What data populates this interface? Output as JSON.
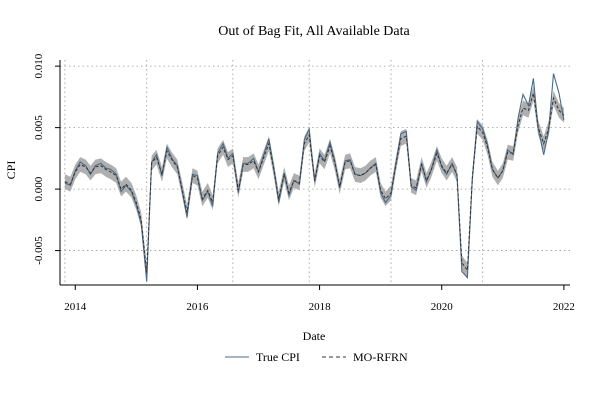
{
  "chart_data": {
    "type": "line",
    "title": "Out of Bag Fit, All Available Data",
    "xlabel": "Date",
    "ylabel": "CPI",
    "x_ticks": [
      "2014",
      "2016",
      "2018",
      "2020",
      "2022"
    ],
    "y_ticks": [
      "-0.005",
      "0.000",
      "0.005",
      "0.010"
    ],
    "x_tick_values": [
      2014,
      2016,
      2018,
      2020,
      2022
    ],
    "y_tick_values": [
      -0.005,
      0.0,
      0.005,
      0.01
    ],
    "xlim": [
      2013.75,
      2022.1
    ],
    "ylim": [
      -0.0078,
      0.0105
    ],
    "grid": "dotted",
    "vertical_grid_dates": [
      2013.83,
      2015.17,
      2016.58,
      2017.83,
      2019.17,
      2020.67
    ],
    "legend_position": "bottom",
    "x": [
      2013.83,
      2013.92,
      2014.0,
      2014.08,
      2014.17,
      2014.25,
      2014.33,
      2014.42,
      2014.5,
      2014.58,
      2014.67,
      2014.75,
      2014.83,
      2014.92,
      2015.0,
      2015.08,
      2015.17,
      2015.25,
      2015.33,
      2015.42,
      2015.5,
      2015.58,
      2015.67,
      2015.75,
      2015.83,
      2015.92,
      2016.0,
      2016.08,
      2016.17,
      2016.25,
      2016.33,
      2016.42,
      2016.5,
      2016.58,
      2016.67,
      2016.75,
      2016.83,
      2016.92,
      2017.0,
      2017.08,
      2017.17,
      2017.25,
      2017.33,
      2017.42,
      2017.5,
      2017.58,
      2017.67,
      2017.75,
      2017.83,
      2017.92,
      2018.0,
      2018.08,
      2018.17,
      2018.25,
      2018.33,
      2018.42,
      2018.5,
      2018.58,
      2018.67,
      2018.75,
      2018.83,
      2018.92,
      2019.0,
      2019.08,
      2019.17,
      2019.25,
      2019.33,
      2019.42,
      2019.5,
      2019.58,
      2019.67,
      2019.75,
      2019.83,
      2019.92,
      2020.0,
      2020.08,
      2020.17,
      2020.25,
      2020.33,
      2020.42,
      2020.5,
      2020.58,
      2020.67,
      2020.75,
      2020.83,
      2020.92,
      2021.0,
      2021.08,
      2021.17,
      2021.25,
      2021.33,
      2021.42,
      2021.5,
      2021.58,
      2021.67,
      2021.75,
      2021.83,
      2021.92,
      2022.0
    ],
    "series": [
      {
        "name": "True CPI",
        "style": "solid",
        "color": "#4a6a8a",
        "values": [
          0.0005,
          0.0003,
          0.0015,
          0.0022,
          0.0019,
          0.0012,
          0.0019,
          0.0021,
          0.0017,
          0.0016,
          0.0012,
          -0.0002,
          0.0003,
          -0.0002,
          -0.0013,
          -0.0028,
          -0.0075,
          0.0022,
          0.0028,
          0.0011,
          0.0034,
          0.0025,
          0.0019,
          -0.0002,
          -0.0023,
          0.0012,
          0.0011,
          -0.0009,
          -0.0002,
          -0.0014,
          0.0029,
          0.0037,
          0.0025,
          0.0029,
          -0.0003,
          0.0021,
          0.0021,
          0.0025,
          0.0014,
          0.0027,
          0.0041,
          0.0017,
          -0.0011,
          0.0013,
          -0.0005,
          0.0007,
          0.0004,
          0.004,
          0.0049,
          0.0006,
          0.0029,
          0.0023,
          0.0038,
          0.0022,
          0.0001,
          0.0023,
          0.0024,
          0.0012,
          0.0011,
          0.0013,
          0.0017,
          0.0021,
          -0.0003,
          -0.0011,
          -0.0005,
          0.0021,
          0.0045,
          0.0047,
          0.0002,
          -0.0001,
          0.0021,
          0.0006,
          0.0016,
          0.0032,
          0.0018,
          0.0012,
          0.0021,
          0.0011,
          -0.0067,
          -0.0072,
          0.0008,
          0.0055,
          0.0049,
          0.0036,
          0.0016,
          0.0009,
          0.0015,
          0.0032,
          0.0028,
          0.0058,
          0.0077,
          0.0068,
          0.009,
          0.0049,
          0.0028,
          0.0047,
          0.0094,
          0.0078,
          0.0056
        ]
      },
      {
        "name": "MO-RFRN",
        "style": "dashed",
        "color": "#333333",
        "values": [
          0.0006,
          0.0004,
          0.0014,
          0.002,
          0.0018,
          0.0013,
          0.0018,
          0.0019,
          0.0016,
          0.0014,
          0.0011,
          0.0,
          0.0004,
          -0.0001,
          -0.0011,
          -0.0025,
          -0.0068,
          0.0021,
          0.0026,
          0.0012,
          0.0031,
          0.0024,
          0.0018,
          0.0,
          -0.0019,
          0.0011,
          0.0009,
          -0.0008,
          -0.0001,
          -0.0011,
          0.0027,
          0.0034,
          0.0024,
          0.0027,
          -0.0001,
          0.002,
          0.002,
          0.0023,
          0.0014,
          0.0025,
          0.0037,
          0.0016,
          -0.0008,
          0.0012,
          -0.0003,
          0.0007,
          0.0005,
          0.0037,
          0.0044,
          0.0007,
          0.0027,
          0.0022,
          0.0035,
          0.0021,
          0.0002,
          0.0022,
          0.0023,
          0.0012,
          0.0011,
          0.0013,
          0.0017,
          0.002,
          -0.0001,
          -0.0008,
          -0.0003,
          0.002,
          0.0041,
          0.0043,
          0.0003,
          0.0001,
          0.002,
          0.0007,
          0.0016,
          0.0029,
          0.0019,
          0.0013,
          0.002,
          0.0012,
          -0.006,
          -0.0066,
          0.0009,
          0.0051,
          0.0046,
          0.0034,
          0.0016,
          0.0009,
          0.0015,
          0.003,
          0.0029,
          0.0052,
          0.0066,
          0.0064,
          0.0078,
          0.005,
          0.0037,
          0.0049,
          0.0074,
          0.0064,
          0.006
        ]
      }
    ],
    "band": {
      "color": "#a6a6a6",
      "half_width": 0.0006
    }
  }
}
